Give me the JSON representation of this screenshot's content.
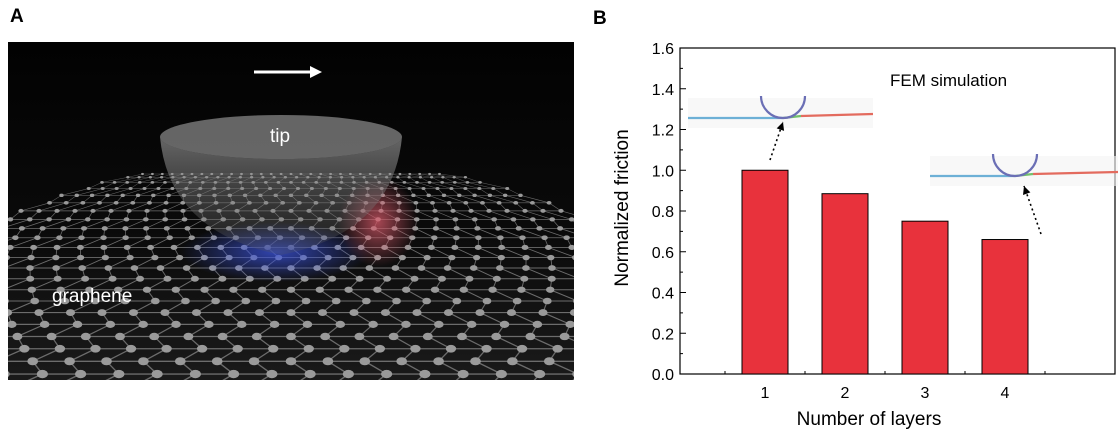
{
  "panels": {
    "a_label": "A",
    "b_label": "B"
  },
  "render": {
    "tip_label": "tip",
    "substrate_label": "graphene",
    "colors": {
      "background": "#050505",
      "atom": "#9a9a9a",
      "bond": "#6c6c6c",
      "tip": "#8e8e8e"
    }
  },
  "chart_data": {
    "type": "bar",
    "categories": [
      "1",
      "2",
      "3",
      "4"
    ],
    "values": [
      1.0,
      0.885,
      0.75,
      0.66
    ],
    "xlabel": "Number of layers",
    "ylabel": "Normalized friction",
    "ylim": [
      0.0,
      1.6
    ],
    "yticks": [
      "0.0",
      "0.2",
      "0.4",
      "0.6",
      "0.8",
      "1.0",
      "1.2",
      "1.4",
      "1.6"
    ],
    "annotation": "FEM simulation",
    "bar_color": "#e8323c",
    "grid": false
  }
}
